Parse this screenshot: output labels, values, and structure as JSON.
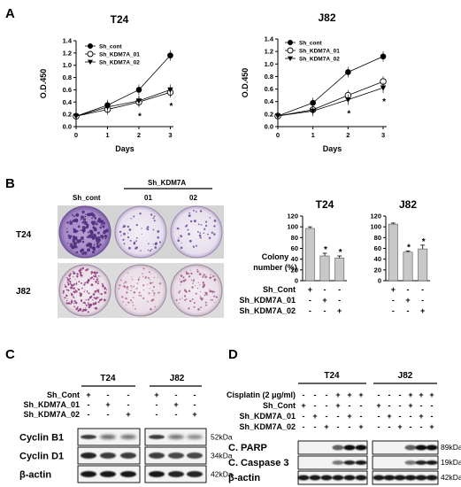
{
  "panels": {
    "a": "A",
    "b": "B",
    "c": "C",
    "d": "D"
  },
  "marks": {
    "plus": "+",
    "minus": "-",
    "star": "*"
  },
  "chart_data": [
    {
      "type": "line",
      "title": "T24",
      "xlabel": "Days",
      "ylabel": "O.D.450",
      "x": [
        0,
        1,
        2,
        3
      ],
      "xlim": [
        0,
        3.1
      ],
      "ylim": [
        0,
        1.4
      ],
      "xticks": [
        "0",
        "1",
        "2",
        "3"
      ],
      "yticks": [
        "0.0",
        "0.2",
        "0.4",
        "0.6",
        "0.8",
        "1.0",
        "1.2",
        "1.4"
      ],
      "series": [
        {
          "name": "Sh_cont",
          "marker": "filled-circle",
          "values": [
            0.17,
            0.35,
            0.6,
            1.16
          ]
        },
        {
          "name": "Sh_KDM7A_01",
          "marker": "open-circle",
          "values": [
            0.17,
            0.28,
            0.4,
            0.56
          ]
        },
        {
          "name": "Sh_KDM7A_02",
          "marker": "filled-triangle-down",
          "values": [
            0.17,
            0.32,
            0.42,
            0.6
          ]
        }
      ],
      "significance": [
        {
          "x": 2,
          "label": "*"
        },
        {
          "x": 3,
          "label": "*"
        }
      ]
    },
    {
      "type": "line",
      "title": "J82",
      "xlabel": "Days",
      "ylabel": "O.D.450",
      "x": [
        0,
        1,
        2,
        3
      ],
      "xlim": [
        0,
        3.1
      ],
      "ylim": [
        0,
        1.4
      ],
      "xticks": [
        "0",
        "1",
        "2",
        "3"
      ],
      "yticks": [
        "0.0",
        "0.2",
        "0.4",
        "0.6",
        "0.8",
        "1.0",
        "1.2",
        "1.4"
      ],
      "series": [
        {
          "name": "Sh_cont",
          "marker": "filled-circle",
          "values": [
            0.17,
            0.38,
            0.87,
            1.12
          ]
        },
        {
          "name": "Sh_KDM7A_01",
          "marker": "open-circle",
          "values": [
            0.17,
            0.27,
            0.5,
            0.72
          ]
        },
        {
          "name": "Sh_KDM7A_02",
          "marker": "filled-triangle-down",
          "values": [
            0.17,
            0.25,
            0.43,
            0.62
          ]
        }
      ],
      "significance": [
        {
          "x": 2,
          "label": "*"
        },
        {
          "x": 3,
          "label": "*"
        }
      ]
    },
    {
      "type": "bar",
      "title": "T24",
      "ylabel": "Colony number (%)",
      "ylim": [
        0,
        120
      ],
      "yticks": [
        "0",
        "20",
        "40",
        "60",
        "80",
        "100",
        "120"
      ],
      "categories": [
        "Sh_Cont",
        "Sh_KDM7A_01",
        "Sh_KDM7A_02"
      ],
      "values": [
        97,
        46,
        42
      ],
      "errors": [
        3,
        5,
        4
      ],
      "significance": [
        "",
        "*",
        "*"
      ]
    },
    {
      "type": "bar",
      "title": "J82",
      "ylim": [
        0,
        120
      ],
      "yticks": [
        "0",
        "20",
        "40",
        "60",
        "80",
        "100",
        "120"
      ],
      "categories": [
        "Sh_Cont",
        "Sh_KDM7A_01",
        "Sh_KDM7A_02"
      ],
      "values": [
        105,
        53,
        59
      ],
      "errors": [
        2,
        2,
        7
      ],
      "significance": [
        "",
        "*",
        "*"
      ]
    }
  ],
  "panel_b": {
    "col_sh_cont": "Sh_cont",
    "group_label": "Sh_KDM7A",
    "col_01": "01",
    "col_02": "02",
    "row_t24": "T24",
    "row_j82": "J82",
    "rows": [
      "Sh_Cont",
      "Sh_KDM7A_01",
      "Sh_KDM7A_02"
    ],
    "matrix": [
      [
        "+",
        "-",
        "-"
      ],
      [
        "-",
        "+",
        "-"
      ],
      [
        "-",
        "-",
        "+"
      ]
    ]
  },
  "panel_c": {
    "group1": "T24",
    "group2": "J82",
    "rows": [
      "Sh_Cont",
      "Sh_KDM7A_01",
      "Sh_KDM7A_02"
    ],
    "matrix": [
      [
        "+",
        "-",
        "-",
        "+",
        "-",
        "-"
      ],
      [
        "-",
        "+",
        "-",
        "-",
        "+",
        "-"
      ],
      [
        "-",
        "-",
        "+",
        "-",
        "-",
        "+"
      ]
    ],
    "blots": [
      {
        "label": "Cyclin B1",
        "kda": "52kDa"
      },
      {
        "label": "Cyclin D1",
        "kda": "34kDa"
      },
      {
        "label": "β-actin",
        "kda": "42kDa"
      }
    ]
  },
  "panel_d": {
    "group1": "T24",
    "group2": "J82",
    "rows": [
      "Cisplatin (2 μg/ml)",
      "Sh_Cont",
      "Sh_KDM7A_01",
      "Sh_KDM7A_02"
    ],
    "matrix": [
      [
        "-",
        "-",
        "-",
        "+",
        "+",
        "+"
      ],
      [
        "+",
        "-",
        "-",
        "+",
        "-",
        "-"
      ],
      [
        "-",
        "+",
        "-",
        "-",
        "+",
        "-"
      ],
      [
        "-",
        "-",
        "+",
        "-",
        "-",
        "+"
      ]
    ],
    "blots": [
      {
        "label": "C. PARP",
        "kda": "89kDa"
      },
      {
        "label": "C. Caspase 3",
        "kda": "19kDa"
      },
      {
        "label": "β-actin",
        "kda": "42kDa"
      }
    ]
  }
}
